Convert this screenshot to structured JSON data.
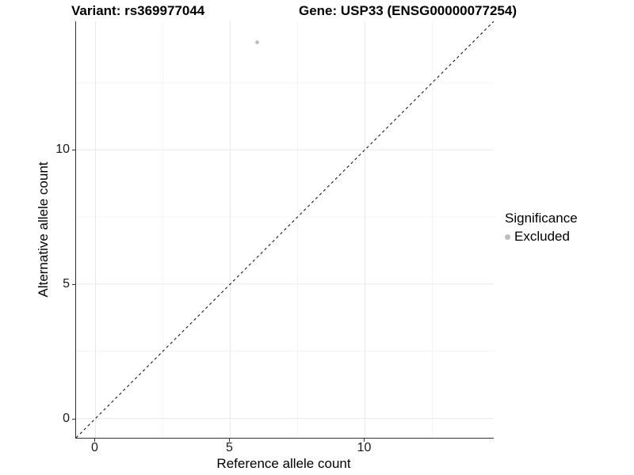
{
  "title": {
    "variant": "Variant: rs369977044",
    "gene": "Gene: USP33 (ENSG00000077254)"
  },
  "axes": {
    "x": {
      "label": "Reference allele count"
    },
    "y": {
      "label": "Alternative allele count"
    }
  },
  "legend": {
    "title": "Significance",
    "items": [
      {
        "label": "Excluded",
        "color": "#bdbdbd"
      }
    ]
  },
  "colors": {
    "point": "#bdbdbd",
    "identity_line": "#1a1a1a",
    "grid_major": "#e9e9e9",
    "grid_minor": "#f4f4f4",
    "axis_line": "#333333"
  },
  "chart_data": {
    "type": "scatter",
    "title": "Variant: rs369977044 / Gene: USP33 (ENSG00000077254)",
    "xlabel": "Reference allele count",
    "ylabel": "Alternative allele count",
    "xlim": [
      -0.72,
      14.78
    ],
    "ylim": [
      -0.72,
      14.78
    ],
    "x_major_ticks": [
      0,
      5,
      10
    ],
    "y_major_ticks": [
      0,
      5,
      10
    ],
    "x_minor_ticks": [
      2.5,
      7.5,
      12.5
    ],
    "y_minor_ticks": [
      2.5,
      7.5,
      12.5
    ],
    "grid": true,
    "legend_position": "right",
    "series": [
      {
        "name": "Excluded",
        "color": "#bdbdbd",
        "points": [
          {
            "x": 6,
            "y": 14
          }
        ]
      }
    ],
    "identity_line": {
      "slope": 1,
      "intercept": 0,
      "style": "dashed"
    }
  }
}
